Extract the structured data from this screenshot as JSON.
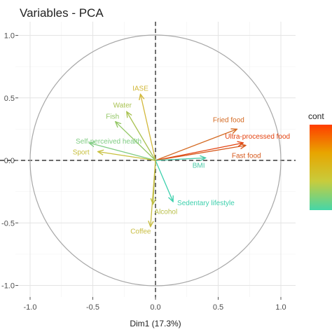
{
  "chart_data": {
    "type": "scatter",
    "title": "Variables - PCA",
    "xlabel": "Dim1 (17.3%)",
    "ylabel": "",
    "xlim": [
      -1.15,
      1.15
    ],
    "ylim": [
      -1.05,
      1.15
    ],
    "x_ticks": [
      "-1.0",
      "-0.5",
      "0.0",
      "0.5",
      "1.0"
    ],
    "y_ticks": [
      "1.0",
      "0.5",
      "0.0",
      "-0.5",
      "-1.0"
    ],
    "grid": true,
    "correlation_circle": true,
    "legend": {
      "title": "cont",
      "type": "gradient",
      "placement": "right",
      "colors": [
        "#ff3d00",
        "#e8a500",
        "#c8cc3c",
        "#45d6a8"
      ]
    },
    "variables": [
      {
        "name": "IASE",
        "x": -0.12,
        "y": 0.53,
        "color": "#d2b83a"
      },
      {
        "name": "Water",
        "x": -0.23,
        "y": 0.39,
        "color": "#a9c252"
      },
      {
        "name": "Fish",
        "x": -0.32,
        "y": 0.31,
        "color": "#93c766"
      },
      {
        "name": "Self-perceived health",
        "x": -0.53,
        "y": 0.14,
        "color": "#7fcc82"
      },
      {
        "name": "Sport",
        "x": -0.46,
        "y": 0.07,
        "color": "#c8c03e"
      },
      {
        "name": "Fried food",
        "x": 0.65,
        "y": 0.25,
        "color": "#d46a22"
      },
      {
        "name": "Ultra-processed food",
        "x": 0.7,
        "y": 0.14,
        "color": "#e3420f"
      },
      {
        "name": "Fast food",
        "x": 0.72,
        "y": 0.12,
        "color": "#d6581b"
      },
      {
        "name": "BMI",
        "x": 0.4,
        "y": 0.02,
        "color": "#49c9a6"
      },
      {
        "name": "Sedentary lifestyle",
        "x": 0.14,
        "y": -0.33,
        "color": "#3dd0ad"
      },
      {
        "name": "Alcohol",
        "x": -0.02,
        "y": -0.35,
        "color": "#b9bf48"
      },
      {
        "name": "Coffee",
        "x": -0.04,
        "y": -0.53,
        "color": "#c8bd40"
      }
    ]
  }
}
